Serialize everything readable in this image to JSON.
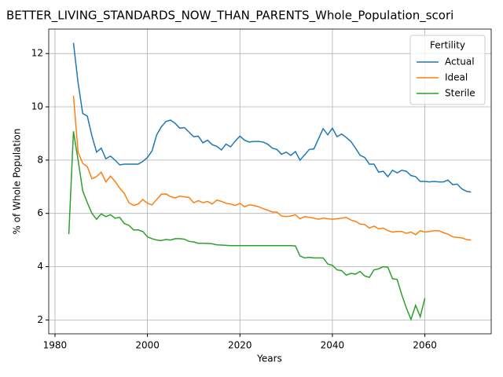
{
  "chart_data": {
    "type": "line",
    "title": "BETTER_LIVING_STANDARDS_NOW_THAN_PARENTS_Whole_Population_scori",
    "xlabel": "Years",
    "ylabel": "% of Whole Population",
    "legend_title": "Fertility",
    "legend": "upper right",
    "grid": true,
    "xlim": [
      1978.65,
      2074.35
    ],
    "xticks": [
      1980,
      2000,
      2020,
      2040,
      2060
    ],
    "ylim": [
      1.48,
      12.92
    ],
    "yticks": [
      2,
      4,
      6,
      8,
      10,
      12
    ],
    "series": [
      {
        "name": "Actual",
        "color": "#1f77b4",
        "x": [
          1984,
          1985,
          1986,
          1987,
          1988,
          1989,
          1990,
          1991,
          1992,
          1993,
          1994,
          1995,
          1996,
          1997,
          1998,
          1999,
          2000,
          2001,
          2002,
          2003,
          2004,
          2005,
          2006,
          2007,
          2008,
          2009,
          2010,
          2011,
          2012,
          2013,
          2014,
          2015,
          2016,
          2017,
          2018,
          2019,
          2020,
          2021,
          2022,
          2023,
          2024,
          2025,
          2026,
          2027,
          2028,
          2029,
          2030,
          2031,
          2032,
          2033,
          2034,
          2035,
          2036,
          2037,
          2038,
          2039,
          2040,
          2041,
          2042,
          2043,
          2044,
          2045,
          2046,
          2047,
          2048,
          2049,
          2050,
          2051,
          2052,
          2053,
          2054,
          2055,
          2056,
          2057,
          2058,
          2059,
          2060,
          2061,
          2062,
          2063,
          2064,
          2065,
          2066,
          2067,
          2068,
          2069,
          2070
        ],
        "values": [
          12.4,
          10.9,
          9.75,
          9.65,
          8.9,
          8.3,
          8.45,
          8.05,
          8.15,
          8.0,
          7.82,
          7.85,
          7.85,
          7.85,
          7.85,
          7.95,
          8.1,
          8.35,
          8.95,
          9.25,
          9.45,
          9.5,
          9.38,
          9.2,
          9.22,
          9.05,
          8.88,
          8.9,
          8.65,
          8.75,
          8.58,
          8.52,
          8.38,
          8.6,
          8.5,
          8.72,
          8.9,
          8.75,
          8.68,
          8.7,
          8.7,
          8.68,
          8.6,
          8.45,
          8.4,
          8.22,
          8.3,
          8.18,
          8.32,
          8.0,
          8.2,
          8.4,
          8.42,
          8.8,
          9.18,
          8.95,
          9.2,
          8.88,
          8.98,
          8.85,
          8.7,
          8.45,
          8.18,
          8.1,
          7.85,
          7.85,
          7.55,
          7.58,
          7.38,
          7.62,
          7.52,
          7.62,
          7.58,
          7.42,
          7.38,
          7.2,
          7.2,
          7.18,
          7.2,
          7.18,
          7.18,
          7.25,
          7.08,
          7.1,
          6.92,
          6.83,
          6.8
        ]
      },
      {
        "name": "Ideal",
        "color": "#ff7f0e",
        "x": [
          1984,
          1985,
          1986,
          1987,
          1988,
          1989,
          1990,
          1991,
          1992,
          1993,
          1994,
          1995,
          1996,
          1997,
          1998,
          1999,
          2000,
          2001,
          2002,
          2003,
          2004,
          2005,
          2006,
          2007,
          2008,
          2009,
          2010,
          2011,
          2012,
          2013,
          2014,
          2015,
          2016,
          2017,
          2018,
          2019,
          2020,
          2021,
          2022,
          2023,
          2024,
          2025,
          2026,
          2027,
          2028,
          2029,
          2030,
          2031,
          2032,
          2033,
          2034,
          2035,
          2036,
          2037,
          2038,
          2039,
          2040,
          2041,
          2042,
          2043,
          2044,
          2045,
          2046,
          2047,
          2048,
          2049,
          2050,
          2051,
          2052,
          2053,
          2054,
          2055,
          2056,
          2057,
          2058,
          2059,
          2060,
          2061,
          2062,
          2063,
          2064,
          2065,
          2066,
          2067,
          2068,
          2069,
          2070
        ],
        "values": [
          10.42,
          8.3,
          7.88,
          7.75,
          7.3,
          7.38,
          7.55,
          7.18,
          7.4,
          7.2,
          6.95,
          6.75,
          6.4,
          6.3,
          6.35,
          6.52,
          6.38,
          6.32,
          6.52,
          6.72,
          6.73,
          6.63,
          6.58,
          6.65,
          6.62,
          6.6,
          6.4,
          6.48,
          6.4,
          6.45,
          6.35,
          6.5,
          6.45,
          6.38,
          6.35,
          6.3,
          6.38,
          6.25,
          6.32,
          6.3,
          6.25,
          6.18,
          6.12,
          6.05,
          6.05,
          5.9,
          5.88,
          5.9,
          5.95,
          5.8,
          5.88,
          5.85,
          5.82,
          5.78,
          5.82,
          5.8,
          5.78,
          5.8,
          5.82,
          5.85,
          5.75,
          5.7,
          5.6,
          5.58,
          5.45,
          5.52,
          5.42,
          5.45,
          5.35,
          5.3,
          5.32,
          5.32,
          5.25,
          5.3,
          5.2,
          5.35,
          5.3,
          5.32,
          5.35,
          5.35,
          5.28,
          5.22,
          5.12,
          5.1,
          5.08,
          5.02,
          5.0
        ]
      },
      {
        "name": "Sterile",
        "color": "#2ca02c",
        "x": [
          1983,
          1984,
          1985,
          1986,
          1987,
          1988,
          1989,
          1990,
          1991,
          1992,
          1993,
          1994,
          1995,
          1996,
          1997,
          1998,
          1999,
          2000,
          2001,
          2002,
          2003,
          2004,
          2005,
          2006,
          2007,
          2008,
          2009,
          2010,
          2011,
          2012,
          2013,
          2014,
          2015,
          2016,
          2017,
          2018,
          2019,
          2020,
          2021,
          2022,
          2023,
          2024,
          2025,
          2026,
          2027,
          2028,
          2029,
          2030,
          2031,
          2032,
          2033,
          2034,
          2035,
          2036,
          2037,
          2038,
          2039,
          2040,
          2041,
          2042,
          2043,
          2044,
          2045,
          2046,
          2047,
          2048,
          2049,
          2050,
          2051,
          2052,
          2053,
          2054,
          2055,
          2056,
          2057,
          2058,
          2059,
          2060
        ],
        "values": [
          5.22,
          9.08,
          8.0,
          6.85,
          6.4,
          6.0,
          5.78,
          5.98,
          5.88,
          5.95,
          5.82,
          5.85,
          5.62,
          5.55,
          5.38,
          5.38,
          5.32,
          5.12,
          5.05,
          5.0,
          4.98,
          5.02,
          5.0,
          5.05,
          5.05,
          5.03,
          4.95,
          4.93,
          4.88,
          4.88,
          4.87,
          4.86,
          4.82,
          4.81,
          4.8,
          4.79,
          4.79,
          4.79,
          4.79,
          4.79,
          4.79,
          4.79,
          4.79,
          4.79,
          4.79,
          4.79,
          4.79,
          4.79,
          4.79,
          4.78,
          4.4,
          4.33,
          4.35,
          4.33,
          4.33,
          4.33,
          4.1,
          4.05,
          3.88,
          3.85,
          3.68,
          3.75,
          3.72,
          3.82,
          3.65,
          3.6,
          3.88,
          3.92,
          4.0,
          3.98,
          3.55,
          3.52,
          2.95,
          2.45,
          2.02,
          2.55,
          2.12,
          2.82
        ]
      }
    ]
  }
}
